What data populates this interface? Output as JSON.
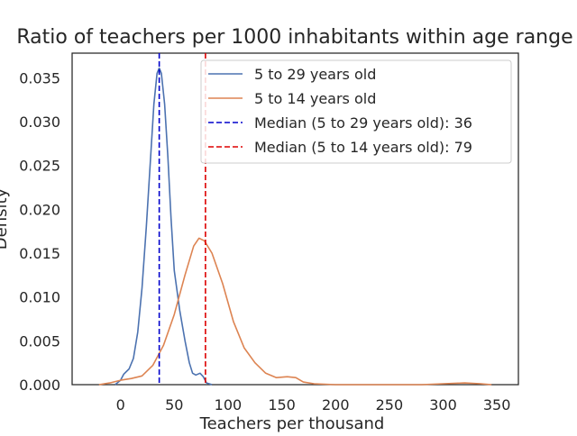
{
  "chart_data": {
    "type": "line",
    "title": "Ratio of teachers per 1000 inhabitants within age range",
    "xlabel": "Teachers per thousand",
    "ylabel": "Density",
    "xlim": [
      -45,
      370
    ],
    "ylim": [
      0,
      0.0378
    ],
    "xticks": [
      0,
      50,
      100,
      150,
      200,
      250,
      300,
      350
    ],
    "yticks": [
      0.0,
      0.005,
      0.01,
      0.015,
      0.02,
      0.025,
      0.03,
      0.035
    ],
    "ytick_labels": [
      "0.000",
      "0.005",
      "0.010",
      "0.015",
      "0.020",
      "0.025",
      "0.030",
      "0.035"
    ],
    "grid": false,
    "legend_position": "top-right",
    "series": [
      {
        "name": "5 to 29 years old",
        "color": "#4c72b0",
        "points": [
          [
            -5,
            0.0
          ],
          [
            0,
            0.0005
          ],
          [
            3,
            0.0012
          ],
          [
            8,
            0.0018
          ],
          [
            12,
            0.003
          ],
          [
            16,
            0.006
          ],
          [
            20,
            0.011
          ],
          [
            24,
            0.018
          ],
          [
            28,
            0.026
          ],
          [
            31,
            0.032
          ],
          [
            34,
            0.0355
          ],
          [
            36,
            0.0361
          ],
          [
            38,
            0.0355
          ],
          [
            41,
            0.032
          ],
          [
            44,
            0.026
          ],
          [
            47,
            0.019
          ],
          [
            50,
            0.013
          ],
          [
            55,
            0.0085
          ],
          [
            60,
            0.005
          ],
          [
            64,
            0.0025
          ],
          [
            67,
            0.0013
          ],
          [
            70,
            0.0011
          ],
          [
            74,
            0.0013
          ],
          [
            77,
            0.0009
          ],
          [
            80,
            0.0002
          ],
          [
            85,
            0.0
          ]
        ]
      },
      {
        "name": "5 to 14 years old",
        "color": "#dd8452",
        "points": [
          [
            -20,
            0.0
          ],
          [
            -10,
            0.0002
          ],
          [
            0,
            0.0005
          ],
          [
            10,
            0.0007
          ],
          [
            20,
            0.001
          ],
          [
            30,
            0.0022
          ],
          [
            40,
            0.0045
          ],
          [
            50,
            0.008
          ],
          [
            60,
            0.0125
          ],
          [
            68,
            0.0158
          ],
          [
            73,
            0.0167
          ],
          [
            78,
            0.0164
          ],
          [
            85,
            0.015
          ],
          [
            95,
            0.0115
          ],
          [
            105,
            0.0072
          ],
          [
            115,
            0.0042
          ],
          [
            125,
            0.0025
          ],
          [
            135,
            0.0013
          ],
          [
            145,
            0.0008
          ],
          [
            155,
            0.0009
          ],
          [
            163,
            0.0008
          ],
          [
            170,
            0.0003
          ],
          [
            180,
            0.0001
          ],
          [
            200,
            0.0
          ],
          [
            280,
            0.0
          ],
          [
            300,
            0.0001
          ],
          [
            320,
            0.0002
          ],
          [
            335,
            0.0001
          ],
          [
            345,
            0.0
          ]
        ]
      }
    ],
    "reference_lines": [
      {
        "label": "Median (5 to 29 years old): 36",
        "x": 36,
        "color": "#0000cc",
        "style": "dashed"
      },
      {
        "label": "Median (5 to 14 years old): 79",
        "x": 79,
        "color": "#dd0000",
        "style": "dashed"
      }
    ]
  }
}
